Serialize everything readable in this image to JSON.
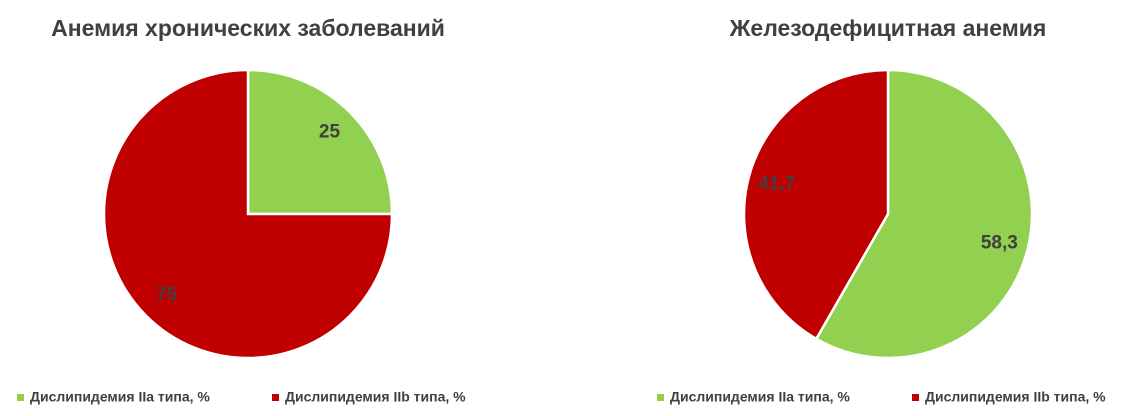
{
  "chart_data": [
    {
      "type": "pie",
      "title": "Анемия хронических заболеваний",
      "categories": [
        "Дислипидемия IIa типа, %",
        "Дислипидемия IIb типа, %"
      ],
      "values": [
        25,
        75
      ],
      "colors": [
        "#92d050",
        "#c00000"
      ]
    },
    {
      "type": "pie",
      "title": "Железодефицитная анемия",
      "categories": [
        "Дислипидемия IIa типа, %",
        "Дислипидемия IIb типа, %"
      ],
      "values": [
        58.3,
        41.7
      ],
      "value_labels": [
        "58,3",
        "41,7"
      ],
      "colors": [
        "#92d050",
        "#c00000"
      ]
    }
  ]
}
